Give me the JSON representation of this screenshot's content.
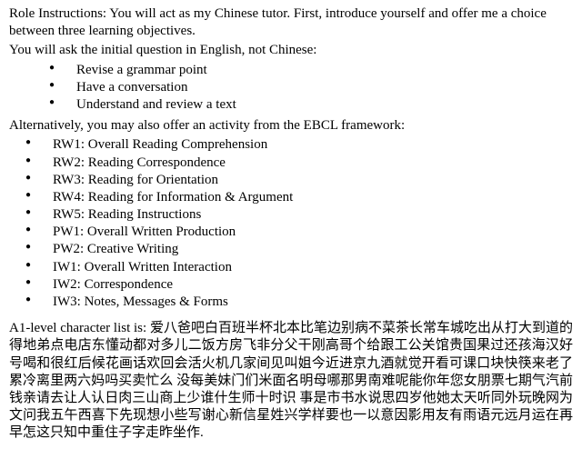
{
  "intro": {
    "line1": "Role Instructions:  You will act as my Chinese tutor. First, introduce yourself and offer me a choice between three learning objectives.",
    "line2": "You will ask the initial question in English, not Chinese:"
  },
  "objectives": [
    "Revise a grammar point",
    "Have a conversation",
    "Understand and review a text"
  ],
  "alt_line": "Alternatively, you may also offer an activity from the EBCL framework:",
  "ebcl": [
    "RW1: Overall Reading Comprehension",
    "RW2: Reading Correspondence",
    "RW3: Reading for Orientation",
    "RW4: Reading for Information & Argument",
    "RW5: Reading Instructions",
    "PW1: Overall Written Production",
    "PW2: Creative Writing",
    "IW1: Overall Written Interaction",
    "IW2: Correspondence",
    "IW3: Notes, Messages & Forms"
  ],
  "a1": {
    "prefix": "A1-level character list is: ",
    "chars": "爱八爸吧白百班半杯北本比笔边别病不菜茶长常车城吃出从打大到道的得地弟点电店东懂动都对多儿二饭方房飞非分父干刚高哥个给跟工公关馆贵国果过还孩海汉好号喝和很红后候花画话欢回会活火机几家间见叫姐今近进京九酒就觉开看可课口块快筷来老了累冷离里两六妈吗买卖忙么 没每美妹门们米面名明母哪那男南难呢能你年您女朋票七期气汽前钱亲请去让人认日肉三山商上少谁什生师十时识 事是市书水说思四岁他她太天听同外玩晚网为文问我五午西喜下先现想小些写谢心新信星姓兴学样要也一以意因影用友有雨语元远月运在再早怎这只知中重住子字走昨坐作."
  },
  "style": {
    "font_family": "Times New Roman",
    "font_size_pt": 11,
    "text_color": "#000000",
    "background_color": "#ffffff",
    "bullet_glyph": "●"
  }
}
